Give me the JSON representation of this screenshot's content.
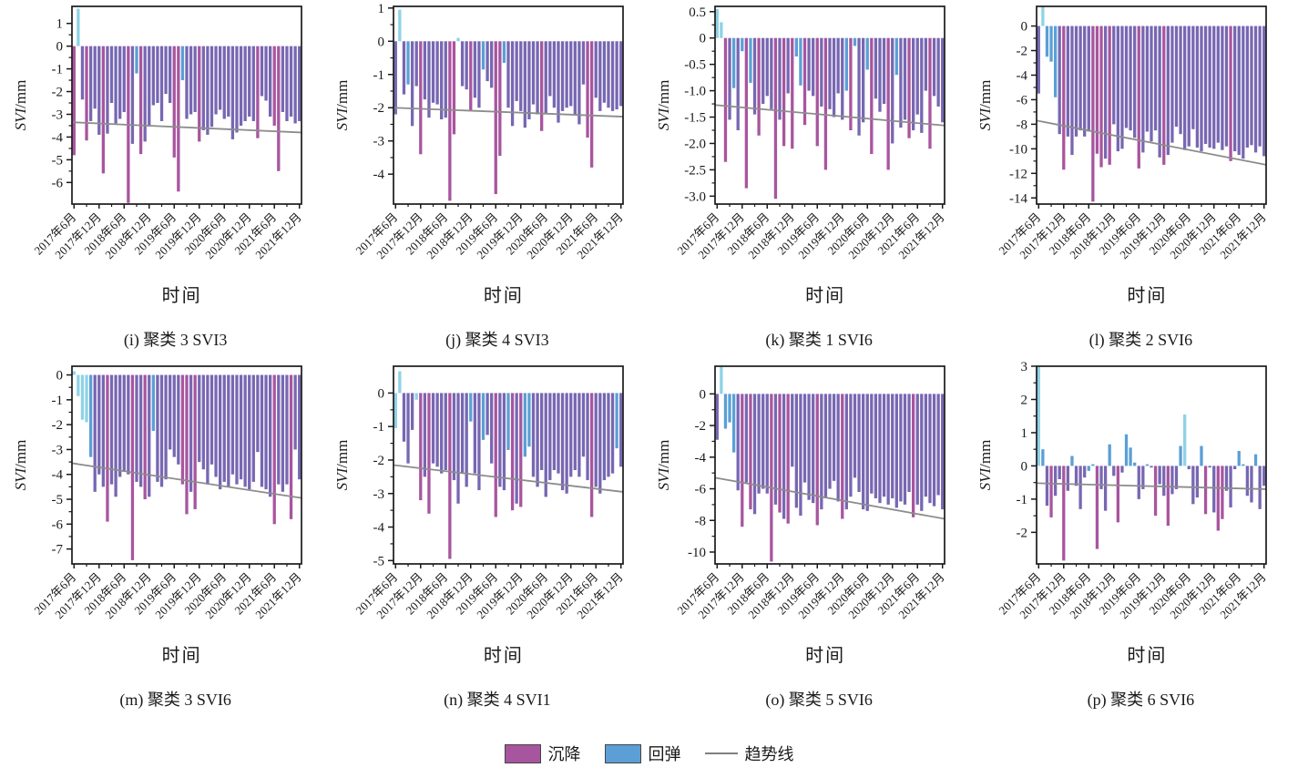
{
  "figure": {
    "background": "#ffffff",
    "axis_color": "#1a1a1a",
    "trend_color": "#8c8c8c",
    "bar_color_map": {
      "m": "#a8559f",
      "v": "#7767b2",
      "b": "#5b9fd6",
      "c": "#8fd2e6"
    }
  },
  "legend_labels": {
    "subsidence": "沉降",
    "rebound": "回弹",
    "trend": "趋势线"
  },
  "chart_data": {
    "type": "bar",
    "xlabel": "时间",
    "ylabel_italic": "SVI",
    "ylabel_unit": "/mm",
    "x_tick_labels": [
      "2017年6月",
      "2017年12月",
      "2018年6月",
      "2018年12月",
      "2019年6月",
      "2019年12月",
      "2020年6月",
      "2020年12月",
      "2021年6月",
      "2021年12月"
    ],
    "legend": [
      "沉降",
      "回弹",
      "趋势线"
    ],
    "charts": [
      {
        "caption": "(i) 聚类 3 SVI3",
        "ytick_labels": [
          "1",
          "0",
          "-1",
          "-2",
          "-3",
          "-4",
          "-5",
          "-6"
        ],
        "ytick_values": [
          1,
          0,
          -1,
          -2,
          -3,
          -4,
          -5,
          -6
        ],
        "ymax": 1.75,
        "ymin": -6.95,
        "trend": [
          -3.35,
          -3.8
        ],
        "values": [
          -4.8,
          1.65,
          -2.35,
          -4.15,
          -3.3,
          -2.75,
          -3.9,
          -5.6,
          -3.85,
          -2.5,
          -3.4,
          -3.2,
          -2.9,
          -6.9,
          -4.3,
          -1.2,
          -4.75,
          -4.2,
          -3.5,
          -2.6,
          -2.5,
          -3.3,
          -2.1,
          -2.5,
          -4.9,
          -6.4,
          -1.5,
          -3.2,
          -3.0,
          -2.9,
          -4.2,
          -3.7,
          -3.9,
          -3.55,
          -3.0,
          -2.8,
          -3.2,
          -3.1,
          -4.1,
          -3.8,
          -3.5,
          -3.3,
          -3.1,
          -3.3,
          -4.05,
          -2.2,
          -2.4,
          -3.1,
          -3.5,
          -5.5,
          -2.9,
          -3.3,
          -3.1,
          -3.4,
          -3.3
        ],
        "bar_colors": "mcvmvvvmvvvvvmvbmvvvvvvvmmbvvvmvvvvvvvvvvvvvmvvvmmvvvvv"
      },
      {
        "caption": "(j) 聚类 4 SVI3",
        "ytick_labels": [
          "1",
          "0",
          "-1",
          "-2",
          "-3",
          "-4"
        ],
        "ytick_values": [
          1,
          0,
          -1,
          -2,
          -3,
          -4
        ],
        "ymax": 1.05,
        "ymin": -4.9,
        "trend": [
          -2.0,
          -2.27
        ],
        "values": [
          -2.2,
          0.95,
          -1.6,
          -1.3,
          -2.55,
          -1.35,
          -3.4,
          -1.75,
          -2.3,
          -1.85,
          -1.9,
          -2.35,
          -2.3,
          -4.8,
          -2.8,
          0.1,
          -1.35,
          -1.45,
          -2.1,
          -1.7,
          -2.0,
          -0.85,
          -1.2,
          -1.4,
          -4.6,
          -3.45,
          -0.65,
          -2.0,
          -2.55,
          -1.8,
          -2.1,
          -2.6,
          -2.35,
          -1.9,
          -2.2,
          -2.7,
          -2.2,
          -1.65,
          -2.0,
          -2.45,
          -2.1,
          -2.0,
          -1.95,
          -2.2,
          -2.5,
          -1.3,
          -2.9,
          -3.8,
          -1.7,
          -2.1,
          -1.85,
          -2.0,
          -2.1,
          -2.05,
          -1.95
        ],
        "bar_colors": "vcvbvvmvvvvvvmmcvvmvvbvvmmbvvvvvvvvmvvvvvvvvvvmmvvvvvvv"
      },
      {
        "caption": "(k) 聚类 1 SVI6",
        "ytick_labels": [
          "0.5",
          "0",
          "-0.5",
          "-1.0",
          "-1.5",
          "-2.0",
          "-2.5",
          "-3.0"
        ],
        "ytick_values": [
          0.5,
          0,
          -0.5,
          -1.0,
          -1.5,
          -2.0,
          -2.5,
          -3.0
        ],
        "ymax": 0.6,
        "ymin": -3.15,
        "trend": [
          -1.27,
          -1.66
        ],
        "values": [
          0.55,
          0.3,
          -2.35,
          -1.55,
          -0.95,
          -1.75,
          -0.25,
          -2.85,
          -0.85,
          -1.45,
          -1.85,
          -1.25,
          -1.1,
          -1.35,
          -3.05,
          -1.55,
          -2.05,
          -1.05,
          -2.1,
          -0.35,
          -0.9,
          -1.65,
          -1.0,
          -1.1,
          -2.05,
          -1.3,
          -2.5,
          -1.35,
          -1.5,
          -1.05,
          -1.55,
          -1.0,
          -1.75,
          -0.15,
          -1.85,
          -1.6,
          -0.6,
          -2.2,
          -1.15,
          -1.4,
          -1.25,
          -2.5,
          -2.0,
          -0.7,
          -1.7,
          -1.55,
          -1.9,
          -1.75,
          -1.45,
          -1.8,
          -1.0,
          -2.1,
          -1.1,
          -1.3,
          -1.6
        ],
        "bar_colors": "ccmvbvbmbvmvvvmvmvmbbmvvmvmvvvvbmbvvbmvvvmvbvvmvvvvmvvv"
      },
      {
        "caption": "(l) 聚类 2 SVI6",
        "ytick_labels": [
          "0",
          "-2",
          "-4",
          "-6",
          "-8",
          "-10",
          "-12",
          "-14"
        ],
        "ytick_values": [
          0,
          -2,
          -4,
          -6,
          -8,
          -10,
          -12,
          -14
        ],
        "ymax": 1.6,
        "ymin": -14.5,
        "trend": [
          -7.7,
          -11.3
        ],
        "values": [
          -5.5,
          1.55,
          -2.5,
          -2.9,
          -5.8,
          -8.8,
          -11.7,
          -9.0,
          -10.5,
          -9.0,
          -8.5,
          -9.0,
          -8.6,
          -14.3,
          -10.4,
          -11.5,
          -10.8,
          -11.3,
          -8.0,
          -10.2,
          -10.0,
          -8.3,
          -8.5,
          -9.1,
          -11.6,
          -10.3,
          -8.6,
          -9.4,
          -8.5,
          -10.7,
          -11.3,
          -10.5,
          -9.5,
          -8.2,
          -8.8,
          -10.1,
          -9.8,
          -8.4,
          -9.9,
          -10.2,
          -9.6,
          -9.9,
          -10.0,
          -9.5,
          -10.1,
          -9.8,
          -11.0,
          -10.2,
          -10.5,
          -10.8,
          -9.9,
          -9.7,
          -10.3,
          -9.8,
          -10.6
        ],
        "bar_colors": "vcbbbvmvvvvvvmmmvmvvvvvvmvvvvvmvvvvvvvvvvvvvvvmvvvvvvvv"
      },
      {
        "caption": "(m) 聚类 3 SVI6",
        "ytick_labels": [
          "0",
          "-1",
          "-2",
          "-3",
          "-4",
          "-5",
          "-6",
          "-7"
        ],
        "ytick_values": [
          0,
          -1,
          -2,
          -3,
          -4,
          -5,
          -6,
          -7
        ],
        "ymax": 0.35,
        "ymin": -7.6,
        "trend": [
          -3.55,
          -4.95
        ],
        "values": [
          0.15,
          -0.85,
          -1.8,
          -1.9,
          -3.3,
          -4.7,
          -4.0,
          -4.5,
          -5.9,
          -4.4,
          -4.9,
          -4.1,
          -3.9,
          -4.0,
          -7.45,
          -4.3,
          -4.5,
          -5.0,
          -4.9,
          -2.25,
          -4.3,
          -4.5,
          -4.2,
          -3.0,
          -3.3,
          -3.6,
          -4.4,
          -5.6,
          -4.7,
          -5.4,
          -3.5,
          -3.8,
          -4.4,
          -3.6,
          -4.1,
          -4.6,
          -4.3,
          -4.5,
          -4.0,
          -4.4,
          -4.2,
          -4.5,
          -4.6,
          -4.3,
          -3.1,
          -4.5,
          -4.6,
          -4.9,
          -6.0,
          -4.4,
          -4.7,
          -4.4,
          -5.8,
          -3.0,
          -4.2
        ],
        "bar_colors": "ccccbvvvmvvvvvmvvmvbvvvvvvmmvmvvvvvvvvvvvvvvvvvvmvvvmvv"
      },
      {
        "caption": "(n) 聚类 4 SVI1",
        "ytick_labels": [
          "0",
          "-1",
          "-2",
          "-3",
          "-4",
          "-5"
        ],
        "ytick_values": [
          0,
          -1,
          -2,
          -3,
          -4,
          -5
        ],
        "ymax": 0.8,
        "ymin": -5.1,
        "trend": [
          -2.15,
          -2.95
        ],
        "values": [
          -1.05,
          0.65,
          -1.45,
          -2.1,
          -1.1,
          -0.2,
          -3.2,
          -2.5,
          -3.6,
          -2.1,
          -2.2,
          -2.4,
          -2.3,
          -4.95,
          -2.6,
          -3.3,
          -2.4,
          -2.8,
          -0.85,
          -2.4,
          -2.9,
          -1.4,
          -1.25,
          -2.1,
          -3.7,
          -2.8,
          -2.9,
          -1.7,
          -3.5,
          -3.3,
          -3.4,
          -1.9,
          -1.6,
          -2.5,
          -2.8,
          -2.3,
          -3.1,
          -2.6,
          -2.3,
          -2.4,
          -2.9,
          -3.0,
          -2.5,
          -2.3,
          -2.5,
          -1.9,
          -2.6,
          -3.7,
          -2.8,
          -3.0,
          -2.6,
          -2.5,
          -2.4,
          -1.65,
          -2.2
        ],
        "bar_colors": "ccvvvcmvmvvvvmvvvvbvvbvvmvvbmvmbbvvvvvvvvvvvvvvmvvvvvbv"
      },
      {
        "caption": "(o) 聚类 5 SVI6",
        "ytick_labels": [
          "0",
          "-2",
          "-4",
          "-6",
          "-8",
          "-10"
        ],
        "ytick_values": [
          0,
          -2,
          -4,
          -6,
          -8,
          -10
        ],
        "ymax": 1.75,
        "ymin": -10.75,
        "trend": [
          -5.3,
          -7.9
        ],
        "values": [
          -2.9,
          1.7,
          -2.2,
          -1.8,
          -3.7,
          -6.1,
          -8.4,
          -5.6,
          -7.3,
          -7.6,
          -6.3,
          -6.0,
          -6.3,
          -10.6,
          -7.0,
          -7.5,
          -7.9,
          -8.2,
          -4.6,
          -7.2,
          -7.7,
          -5.6,
          -6.7,
          -6.9,
          -8.3,
          -7.3,
          -6.6,
          -6.0,
          -5.5,
          -6.8,
          -7.9,
          -7.3,
          -6.5,
          -5.3,
          -6.2,
          -7.3,
          -7.4,
          -6.3,
          -6.6,
          -6.9,
          -6.5,
          -7.0,
          -6.6,
          -7.2,
          -6.8,
          -7.0,
          -6.2,
          -7.8,
          -7.0,
          -7.4,
          -6.5,
          -6.9,
          -7.1,
          -6.4,
          -7.3
        ],
        "bar_colors": "vcbbbvmvmvvvvmvmvmvvvvvvmvvvvvmvvvvvvvvvvvvvvvvmvvvvvvv"
      },
      {
        "caption": "(p) 聚类 6 SVI6",
        "ytick_labels": [
          "3",
          "2",
          "1",
          "0",
          "-1",
          "-2"
        ],
        "ytick_values": [
          3,
          2,
          1,
          0,
          -1,
          -2
        ],
        "ymax": 3.0,
        "ymin": -2.95,
        "trend": [
          -0.52,
          -0.7
        ],
        "values": [
          3.0,
          0.5,
          -1.2,
          -1.55,
          -0.9,
          -0.4,
          -2.85,
          -0.75,
          0.3,
          -0.6,
          -1.3,
          -0.35,
          -0.15,
          0.05,
          -2.5,
          -0.7,
          -1.35,
          0.65,
          -0.3,
          -1.7,
          -0.2,
          0.95,
          0.55,
          0.1,
          -1.0,
          -0.7,
          0.05,
          -0.05,
          -1.5,
          -0.55,
          -0.9,
          -1.8,
          -0.85,
          -0.7,
          0.6,
          1.55,
          -0.1,
          -1.15,
          -0.95,
          0.6,
          -1.45,
          -0.05,
          -1.4,
          -1.95,
          -1.6,
          -0.75,
          -1.25,
          -0.1,
          0.45,
          0.05,
          -0.9,
          -1.1,
          0.35,
          -1.3,
          -0.6
        ],
        "bar_colors": "cbvmvvmvbvvvbbmvvbvmvbbbvvbvmvvmvvbcvvvbmvvmmvvvbbvvbvv"
      }
    ]
  }
}
